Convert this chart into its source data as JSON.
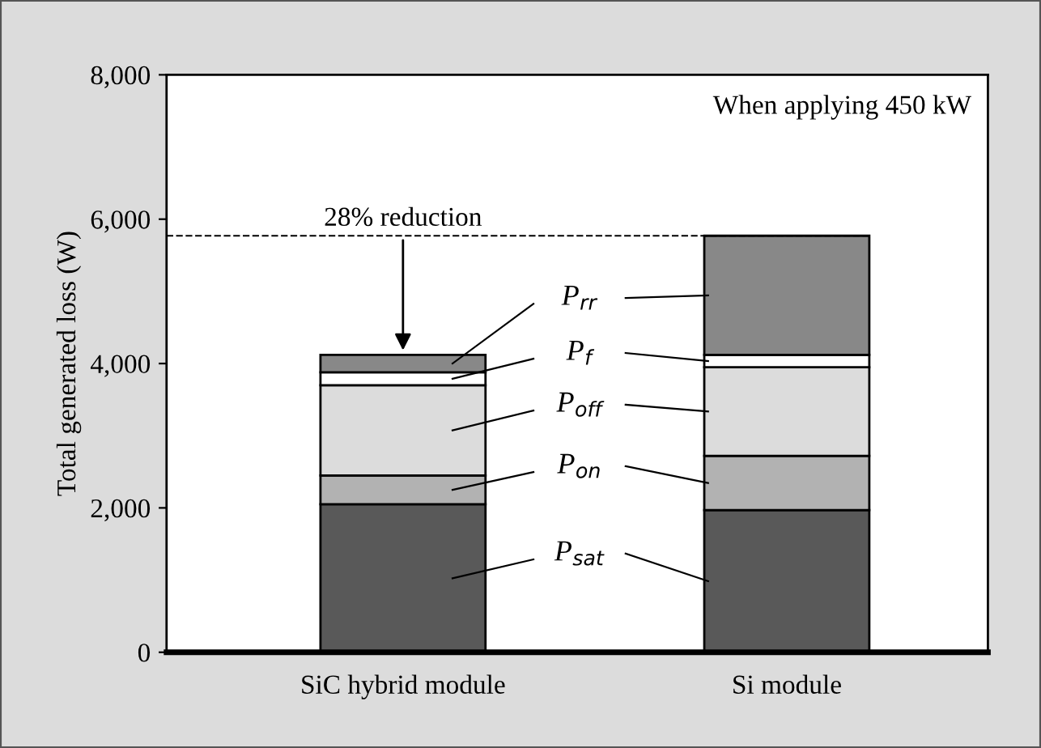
{
  "chart_data": {
    "type": "bar",
    "stacked": true,
    "ylabel": "Total generated loss (W)",
    "categories": [
      "SiC hybrid module",
      "Si module"
    ],
    "series": [
      {
        "name": "P$_{sat}$",
        "color": "#595959",
        "values": [
          2050,
          1970
        ]
      },
      {
        "name": "P$_{on}$",
        "color": "#b2b2b2",
        "values": [
          400,
          750
        ]
      },
      {
        "name": "P$_{off}$",
        "color": "#dcdcdc",
        "values": [
          1250,
          1230
        ]
      },
      {
        "name": "P$_{f}$",
        "color": "#ffffff",
        "values": [
          180,
          170
        ]
      },
      {
        "name": "P$_{rr}$",
        "color": "#888888",
        "values": [
          240,
          1650
        ]
      }
    ],
    "ylim": [
      0,
      8000
    ],
    "yticks": [
      {
        "value": 0,
        "label": "0"
      },
      {
        "value": 2000,
        "label": "2,000"
      },
      {
        "value": 4000,
        "label": "4,000"
      },
      {
        "value": 6000,
        "label": "6,000"
      },
      {
        "value": 8000,
        "label": "8,000"
      }
    ],
    "ref_lines": [
      {
        "axis": "y",
        "value": 5770,
        "label": null,
        "line_style": "dashed",
        "color": "#000000"
      }
    ],
    "annotations": [
      {
        "text": "28% reduction",
        "x": "SiC hybrid module",
        "y": 4120
      },
      "When applying 450 kW"
    ],
    "grid": false,
    "legend": "center"
  }
}
